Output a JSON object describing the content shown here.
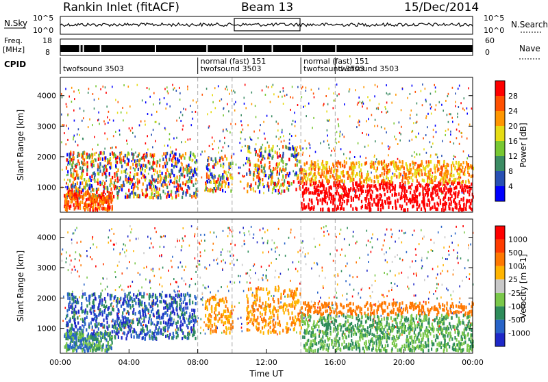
{
  "header": {
    "station": "Rankin Inlet (fitACF)",
    "beam": "Beam 13",
    "date": "15/Dec/2014"
  },
  "top_panels": {
    "nsky_label": "N.Sky",
    "nsky_ticks": [
      "10^5",
      "10^0"
    ],
    "nsearch_label": "N.Search",
    "nsearch_ticks": [
      "10^5",
      "10^0"
    ],
    "freq_label": "Freq.",
    "freq_unit": "[MHz]",
    "freq_ticks": [
      "18",
      "8"
    ],
    "nave_label": "Nave",
    "nave_ticks": [
      "60",
      "0"
    ],
    "cpid_label": "CPID",
    "cpid_segments": [
      {
        "name": "twofsound 3503",
        "start_hour": 0,
        "end_hour": 8.0
      },
      {
        "name": "normal (fast) 151",
        "start_hour": 8.0,
        "end_hour": 14.0,
        "sub": "twofsound 3503"
      },
      {
        "name": "normal (fast) 151",
        "start_hour": 14.0,
        "end_hour": 16.0,
        "sub": "twofsound 3503"
      },
      {
        "name": "twofsound 3503",
        "start_hour": 16.0,
        "end_hour": 24.0
      }
    ]
  },
  "chart_data": [
    {
      "type": "heatmap",
      "title": "Power",
      "xlabel": "",
      "ylabel": "Slant Range [km]",
      "xlim": [
        0,
        24
      ],
      "ylim": [
        180,
        4600
      ],
      "y_ticks": [
        "1000",
        "2000",
        "3000",
        "4000"
      ],
      "colorbar_label": "Power [dB]",
      "colorbar_ticks": [
        "4",
        "8",
        "12",
        "16",
        "20",
        "24",
        "28"
      ],
      "colors": [
        "#0000ff",
        "#2850b4",
        "#3c8c64",
        "#78c832",
        "#e6dc14",
        "#ff9600",
        "#ff5000",
        "#ff0000"
      ]
    },
    {
      "type": "heatmap",
      "title": "Velocity",
      "xlabel": "Time UT",
      "ylabel": "Slant Range [km]",
      "xlim": [
        0,
        24
      ],
      "ylim": [
        180,
        4600
      ],
      "x_ticks": [
        "00:00",
        "04:00",
        "08:00",
        "12:00",
        "16:00",
        "20:00",
        "00:00"
      ],
      "y_ticks": [
        "1000",
        "2000",
        "3000",
        "4000"
      ],
      "colorbar_label": "Velocity [m s-1]",
      "colorbar_ticks": [
        "1000",
        "500",
        "100",
        "25",
        "-25",
        "-100",
        "-500",
        "-1000"
      ],
      "colors": [
        "#1e28c8",
        "#2864c8",
        "#2e8c5a",
        "#7ac84a",
        "#c8c8c8",
        "#ffb400",
        "#ff7800",
        "#ff3c00",
        "#ff0000"
      ]
    }
  ]
}
